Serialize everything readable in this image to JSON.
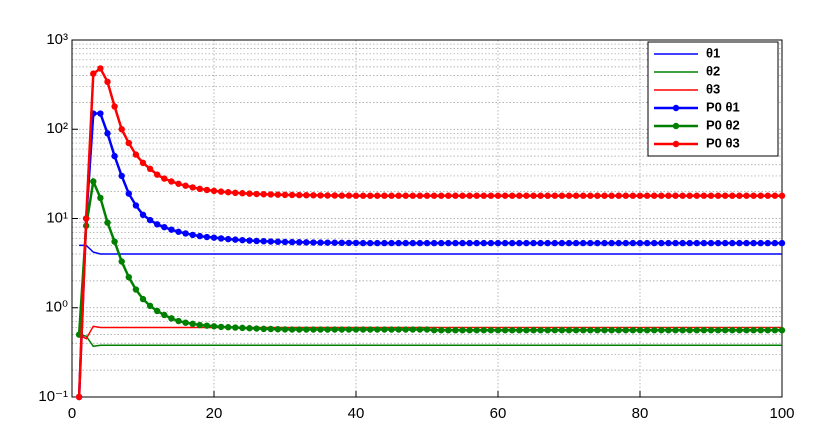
{
  "chart_data": {
    "type": "line",
    "log_y": true,
    "grid": true,
    "minor_grid": true,
    "legend": "northeast",
    "xlim": [
      0,
      100
    ],
    "xticks": [
      0,
      20,
      40,
      60,
      80,
      100
    ],
    "ylim": [
      0.1,
      1000
    ],
    "yticks": [
      {
        "value": 0.1,
        "label": "10⁻¹"
      },
      {
        "value": 1,
        "label": "10⁰"
      },
      {
        "value": 10,
        "label": "10¹"
      },
      {
        "value": 100,
        "label": "10²"
      },
      {
        "value": 1000,
        "label": "10³"
      }
    ],
    "x": [
      1,
      2,
      3,
      4,
      5,
      6,
      7,
      8,
      9,
      10,
      11,
      12,
      13,
      14,
      15,
      16,
      17,
      18,
      19,
      20,
      21,
      22,
      23,
      24,
      25,
      26,
      27,
      28,
      29,
      30,
      31,
      32,
      33,
      34,
      35,
      36,
      37,
      38,
      39,
      40,
      41,
      42,
      43,
      44,
      45,
      46,
      47,
      48,
      49,
      50,
      51,
      52,
      53,
      54,
      55,
      56,
      57,
      58,
      59,
      60,
      61,
      62,
      63,
      64,
      65,
      66,
      67,
      68,
      69,
      70,
      71,
      72,
      73,
      74,
      75,
      76,
      77,
      78,
      79,
      80,
      81,
      82,
      83,
      84,
      85,
      86,
      87,
      88,
      89,
      90,
      91,
      92,
      93,
      94,
      95,
      96,
      97,
      98,
      99,
      100
    ],
    "series": [
      {
        "name": "θ1",
        "color": "#0000ff",
        "markers": false,
        "values": [
          5,
          5,
          4.2,
          4,
          4,
          4,
          4,
          4,
          4,
          4,
          4,
          4,
          4,
          4,
          4,
          4,
          4,
          4,
          4,
          4,
          4,
          4,
          4,
          4,
          4,
          4,
          4,
          4,
          4,
          4,
          4,
          4,
          4,
          4,
          4,
          4,
          4,
          4,
          4,
          4,
          4,
          4,
          4,
          4,
          4,
          4,
          4,
          4,
          4,
          4,
          4,
          4,
          4,
          4,
          4,
          4,
          4,
          4,
          4,
          4,
          4,
          4,
          4,
          4,
          4,
          4,
          4,
          4,
          4,
          4,
          4,
          4,
          4,
          4,
          4,
          4,
          4,
          4,
          4,
          4,
          4,
          4,
          4,
          4,
          4,
          4,
          4,
          4,
          4,
          4,
          4,
          4,
          4,
          4,
          4,
          4,
          4,
          4,
          4,
          4
        ]
      },
      {
        "name": "θ2",
        "color": "#008000",
        "markers": false,
        "values": [
          0.5,
          0.48,
          0.37,
          0.38,
          0.38,
          0.38,
          0.38,
          0.38,
          0.38,
          0.38,
          0.38,
          0.38,
          0.38,
          0.38,
          0.38,
          0.38,
          0.38,
          0.38,
          0.38,
          0.38,
          0.38,
          0.38,
          0.38,
          0.38,
          0.38,
          0.38,
          0.38,
          0.38,
          0.38,
          0.38,
          0.38,
          0.38,
          0.38,
          0.38,
          0.38,
          0.38,
          0.38,
          0.38,
          0.38,
          0.38,
          0.38,
          0.38,
          0.38,
          0.38,
          0.38,
          0.38,
          0.38,
          0.38,
          0.38,
          0.38,
          0.38,
          0.38,
          0.38,
          0.38,
          0.38,
          0.38,
          0.38,
          0.38,
          0.38,
          0.38,
          0.38,
          0.38,
          0.38,
          0.38,
          0.38,
          0.38,
          0.38,
          0.38,
          0.38,
          0.38,
          0.38,
          0.38,
          0.38,
          0.38,
          0.38,
          0.38,
          0.38,
          0.38,
          0.38,
          0.38,
          0.38,
          0.38,
          0.38,
          0.38,
          0.38,
          0.38,
          0.38,
          0.38,
          0.38,
          0.38,
          0.38,
          0.38,
          0.38,
          0.38,
          0.38,
          0.38,
          0.38,
          0.38,
          0.38,
          0.38
        ]
      },
      {
        "name": "θ3",
        "color": "#ff0000",
        "markers": false,
        "values": [
          0.5,
          0.45,
          0.62,
          0.6,
          0.6,
          0.6,
          0.6,
          0.6,
          0.6,
          0.6,
          0.6,
          0.6,
          0.6,
          0.6,
          0.6,
          0.6,
          0.6,
          0.6,
          0.6,
          0.6,
          0.6,
          0.6,
          0.6,
          0.6,
          0.6,
          0.6,
          0.6,
          0.6,
          0.6,
          0.6,
          0.6,
          0.6,
          0.6,
          0.6,
          0.6,
          0.6,
          0.6,
          0.6,
          0.6,
          0.6,
          0.6,
          0.6,
          0.6,
          0.6,
          0.6,
          0.6,
          0.6,
          0.6,
          0.6,
          0.6,
          0.6,
          0.6,
          0.6,
          0.6,
          0.6,
          0.6,
          0.6,
          0.6,
          0.6,
          0.6,
          0.6,
          0.6,
          0.6,
          0.6,
          0.6,
          0.6,
          0.6,
          0.6,
          0.6,
          0.6,
          0.6,
          0.6,
          0.6,
          0.6,
          0.6,
          0.6,
          0.6,
          0.6,
          0.6,
          0.6,
          0.6,
          0.6,
          0.6,
          0.6,
          0.6,
          0.6,
          0.6,
          0.6,
          0.6,
          0.6,
          0.6,
          0.6,
          0.6,
          0.6,
          0.6,
          0.6,
          0.6,
          0.6,
          0.6,
          0.6
        ]
      },
      {
        "name": "P0 θ1",
        "color": "#0000ff",
        "markers": true,
        "values": [
          0.1,
          10,
          150,
          150,
          90,
          50,
          30,
          19,
          14,
          11,
          9.6,
          8.6,
          8,
          7.5,
          7.1,
          6.8,
          6.55,
          6.35,
          6.2,
          6.1,
          5.98,
          5.88,
          5.8,
          5.72,
          5.66,
          5.6,
          5.56,
          5.52,
          5.49,
          5.46,
          5.44,
          5.42,
          5.4,
          5.38,
          5.37,
          5.36,
          5.35,
          5.34,
          5.33,
          5.33,
          5.3,
          5.3,
          5.3,
          5.3,
          5.3,
          5.3,
          5.3,
          5.3,
          5.3,
          5.3,
          5.3,
          5.3,
          5.3,
          5.3,
          5.3,
          5.3,
          5.3,
          5.3,
          5.3,
          5.3,
          5.3,
          5.3,
          5.3,
          5.3,
          5.3,
          5.3,
          5.3,
          5.3,
          5.3,
          5.3,
          5.3,
          5.3,
          5.3,
          5.3,
          5.3,
          5.3,
          5.3,
          5.3,
          5.3,
          5.3,
          5.3,
          5.3,
          5.3,
          5.3,
          5.3,
          5.3,
          5.3,
          5.3,
          5.3,
          5.3,
          5.3,
          5.3,
          5.3,
          5.3,
          5.3,
          5.3,
          5.3,
          5.3,
          5.3,
          5.3
        ]
      },
      {
        "name": "P0 θ2",
        "color": "#008000",
        "markers": true,
        "values": [
          0.5,
          8.3,
          26,
          17,
          9,
          5.5,
          3.3,
          2.2,
          1.6,
          1.25,
          1.05,
          0.92,
          0.83,
          0.76,
          0.71,
          0.68,
          0.66,
          0.64,
          0.63,
          0.62,
          0.61,
          0.605,
          0.6,
          0.595,
          0.59,
          0.585,
          0.58,
          0.578,
          0.575,
          0.572,
          0.57,
          0.57,
          0.57,
          0.57,
          0.57,
          0.57,
          0.57,
          0.57,
          0.57,
          0.57,
          0.57,
          0.57,
          0.57,
          0.57,
          0.57,
          0.57,
          0.57,
          0.57,
          0.57,
          0.57,
          0.56,
          0.56,
          0.56,
          0.56,
          0.56,
          0.56,
          0.56,
          0.56,
          0.56,
          0.56,
          0.56,
          0.56,
          0.56,
          0.56,
          0.56,
          0.56,
          0.56,
          0.56,
          0.56,
          0.56,
          0.56,
          0.56,
          0.56,
          0.56,
          0.56,
          0.56,
          0.56,
          0.56,
          0.56,
          0.56,
          0.56,
          0.56,
          0.56,
          0.56,
          0.56,
          0.56,
          0.56,
          0.56,
          0.56,
          0.56,
          0.56,
          0.56,
          0.56,
          0.56,
          0.56,
          0.56,
          0.56,
          0.56,
          0.56,
          0.56
        ]
      },
      {
        "name": "P0 θ3",
        "color": "#ff0000",
        "markers": true,
        "values": [
          0.1,
          10,
          420,
          480,
          340,
          180,
          100,
          70,
          52,
          42,
          36,
          31,
          28,
          26,
          24.5,
          23.3,
          22.3,
          21.5,
          20.9,
          20.4,
          20,
          19.7,
          19.4,
          19.2,
          19,
          18.8,
          18.7,
          18.6,
          18.5,
          18.4,
          18.35,
          18.3,
          18.25,
          18.2,
          18.15,
          18.1,
          18.1,
          18.05,
          18.05,
          18,
          18,
          18,
          18,
          18,
          18,
          18,
          18,
          18,
          18,
          18,
          18,
          18,
          18,
          18,
          18,
          18,
          18,
          18,
          18,
          18,
          18,
          18,
          18,
          18,
          18,
          18,
          18,
          18,
          18,
          18,
          18,
          18,
          18,
          18,
          18,
          18,
          18,
          18,
          18,
          18,
          18,
          18,
          18,
          18,
          18,
          18,
          18,
          18,
          18,
          18,
          18,
          18,
          18,
          18,
          18,
          18,
          18,
          18,
          18,
          18
        ]
      }
    ]
  }
}
